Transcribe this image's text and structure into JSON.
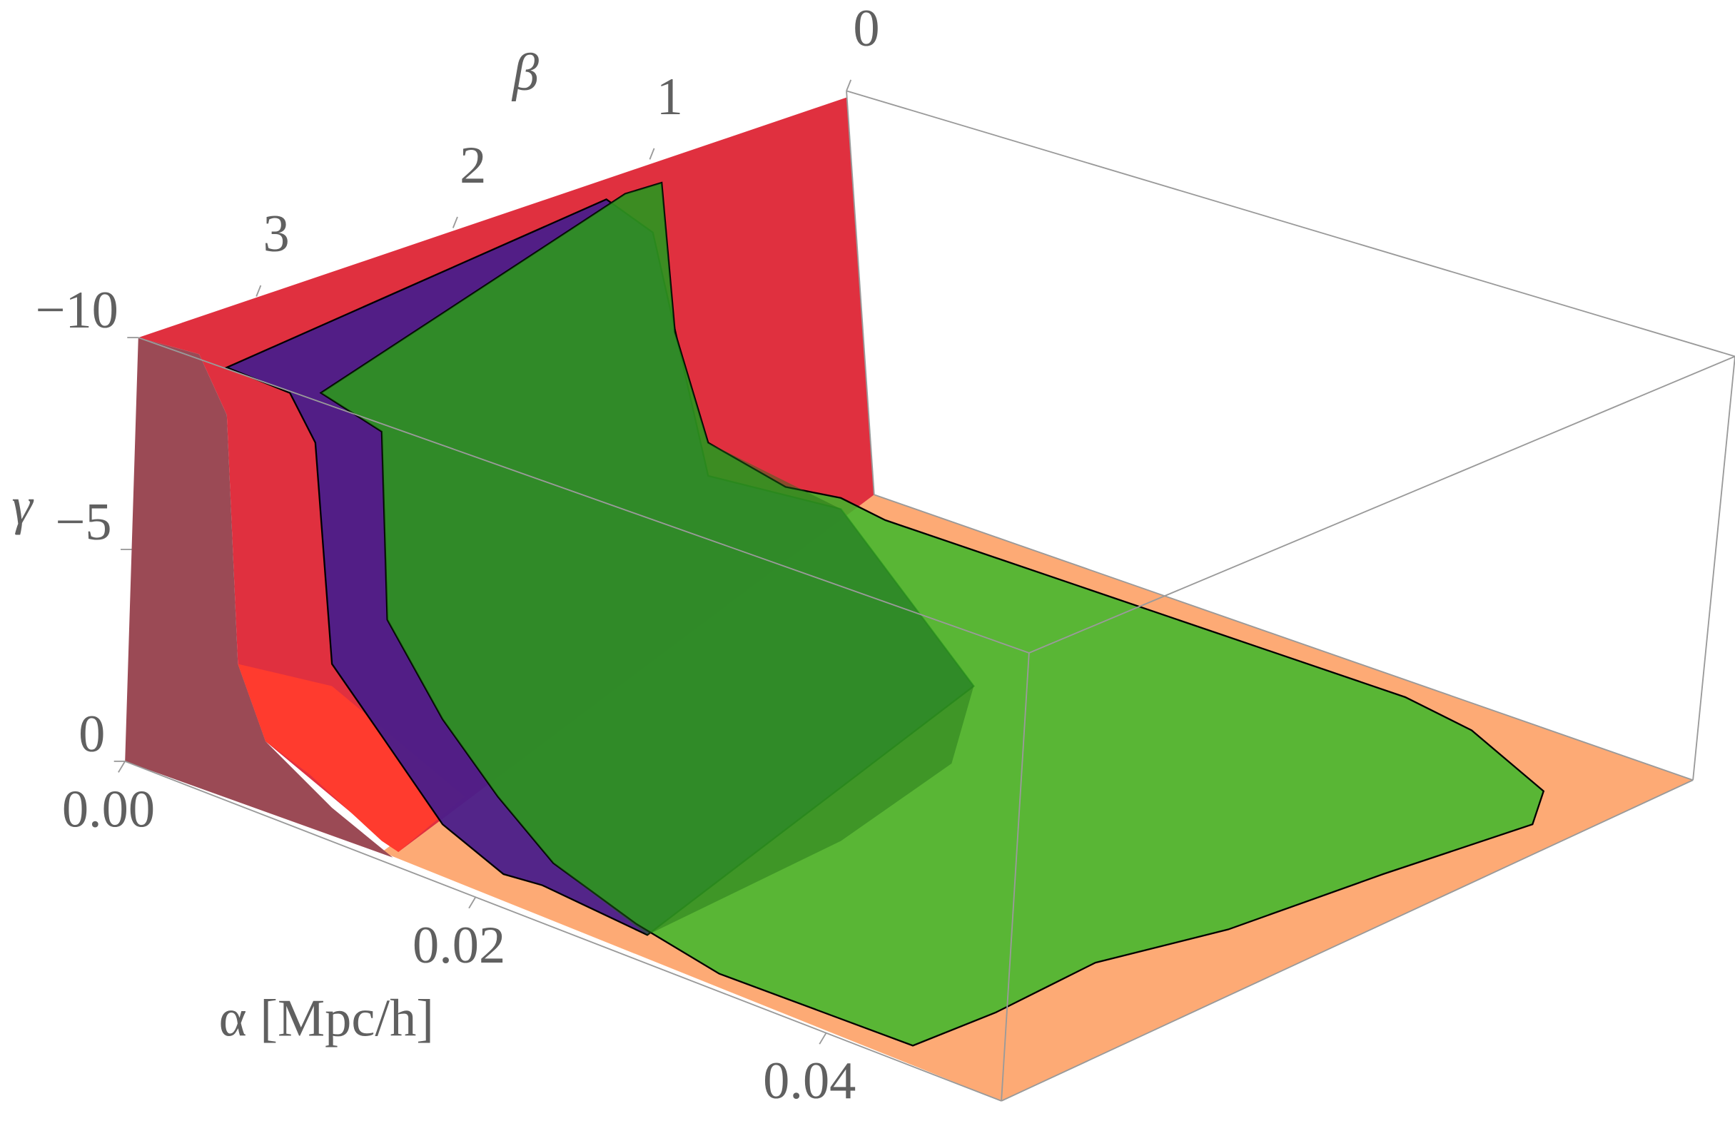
{
  "chart_data": {
    "type": "surface3d",
    "xlabel": "α [Mpc/h]",
    "ylabel": "β",
    "zlabel": "γ",
    "xlim": [
      0,
      0.05
    ],
    "xticks": [
      {
        "value": 0,
        "label": "0.00"
      },
      {
        "value": 0.02,
        "label": "0.02"
      },
      {
        "value": 0.04,
        "label": "0.04"
      }
    ],
    "ylim": [
      0,
      3.6
    ],
    "yticks": [
      0,
      1,
      2,
      3
    ],
    "zlim": [
      0,
      -10
    ],
    "zticks": [
      {
        "value": -10,
        "label": "−10"
      },
      {
        "value": -5,
        "label": "−5"
      },
      0
    ],
    "box": true
  }
}
